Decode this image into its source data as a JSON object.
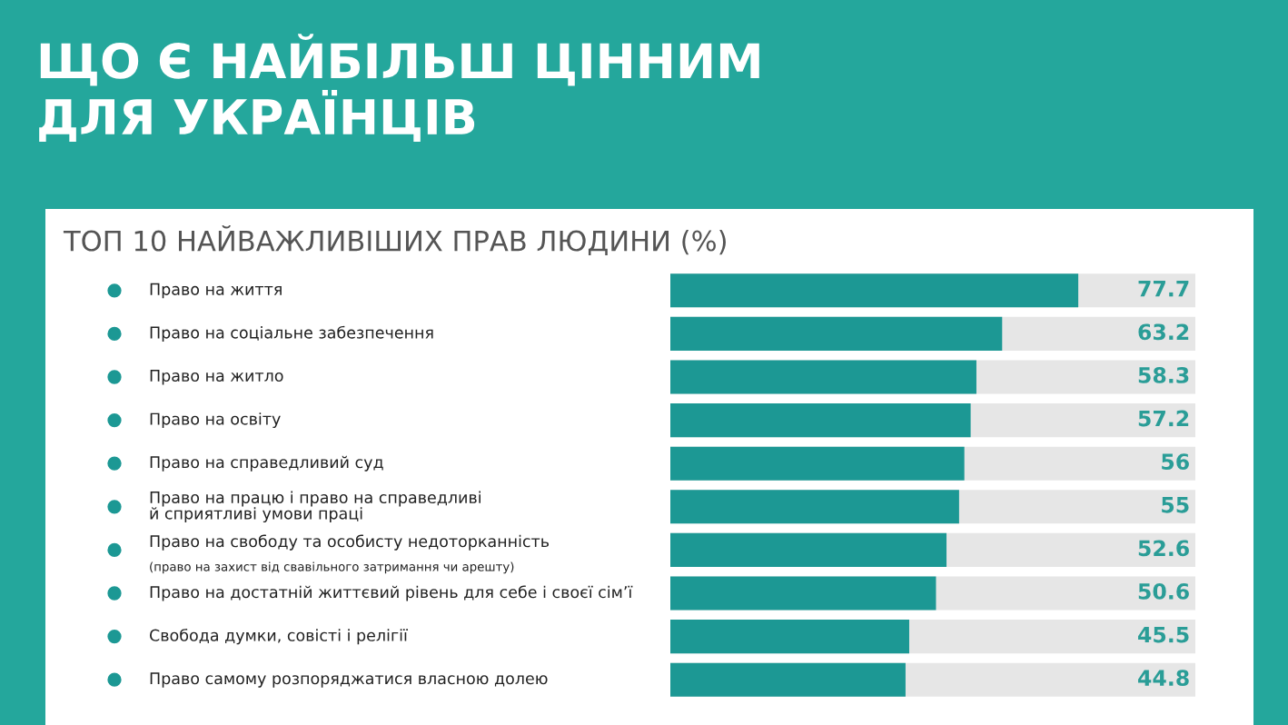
{
  "chart_data": {
    "type": "bar",
    "orientation": "horizontal",
    "title": "ЩО Є НАЙБІЛЬШ ЦІННИМ\nДЛЯ УКРАЇНЦІВ",
    "subtitle": "ТОП 10 НАЙВАЖЛИВІШИХ ПРАВ ЛЮДИНИ (%)",
    "categories": [
      "Право на життя",
      "Право на соціальне забезпечення",
      "Право на житло",
      "Право на освіту",
      "Право на справедливий суд",
      "Право на працю і право на справедливі\nй сприятливі умови праці",
      "Право на свободу та особисту недоторканність",
      "Право на достатній життєвий рівень для себе і своєї сім’ї",
      "Свобода думки, совісті і релігії",
      "Право самому розпоряджатися власною долею"
    ],
    "values": [
      77.7,
      63.2,
      58.3,
      57.2,
      56,
      55,
      52.6,
      50.6,
      45.5,
      44.8
    ],
    "color": "#1c9894",
    "xlim": [
      0,
      100
    ],
    "data_labels": true,
    "annotations": [
      "(право на захист від свавільного затримання чи арешту)"
    ]
  }
}
